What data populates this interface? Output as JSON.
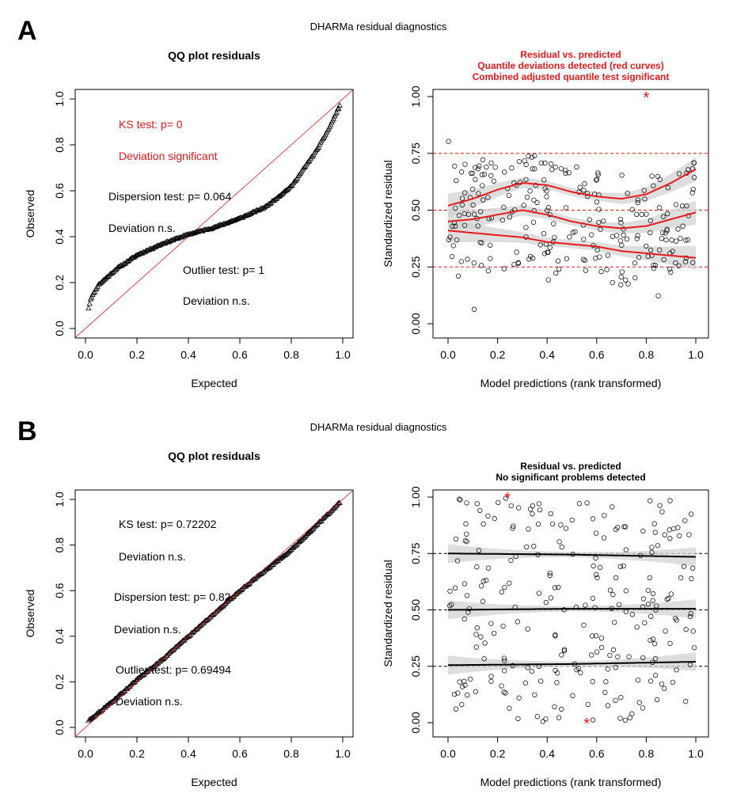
{
  "panels": [
    {
      "letter": "A",
      "suptitle": "DHARMa residual diagnostics",
      "qq": {
        "title": "QQ plot residuals",
        "xlabel": "Expected",
        "ylabel": "Observed",
        "ticks": [
          "0.0",
          "0.2",
          "0.4",
          "0.6",
          "0.8",
          "1.0"
        ],
        "annotations": [
          {
            "text": "KS test: p= 0",
            "color": "#e8191d"
          },
          {
            "text": "Deviation  significant",
            "color": "#e8191d"
          },
          {
            "text": "Dispersion test: p= 0.064",
            "color": "#000000"
          },
          {
            "text": "Deviation  n.s.",
            "color": "#000000"
          },
          {
            "text": "Outlier test: p= 1",
            "color": "#000000"
          },
          {
            "text": "Deviation  n.s.",
            "color": "#000000"
          }
        ]
      },
      "res": {
        "title_lines": [
          "Residual vs. predicted",
          "Quantile deviations detected (red curves)",
          "Combined adjusted quantile test significant"
        ],
        "title_color": "#e8191d",
        "xlabel": "Model predictions (rank transformed)",
        "ylabel": "Standardized residual",
        "xticks": [
          "0.0",
          "0.2",
          "0.4",
          "0.6",
          "0.8",
          "1.0"
        ],
        "yticks": [
          "0.00",
          "0.25",
          "0.50",
          "0.75",
          "1.00"
        ]
      }
    },
    {
      "letter": "B",
      "suptitle": "DHARMa residual diagnostics",
      "qq": {
        "title": "QQ plot residuals",
        "xlabel": "Expected",
        "ylabel": "Observed",
        "ticks": [
          "0.0",
          "0.2",
          "0.4",
          "0.6",
          "0.8",
          "1.0"
        ],
        "annotations": [
          {
            "text": "KS test: p= 0.72202",
            "color": "#000000"
          },
          {
            "text": "Deviation  n.s.",
            "color": "#000000"
          },
          {
            "text": "Dispersion test: p= 0.82",
            "color": "#000000"
          },
          {
            "text": "Deviation  n.s.",
            "color": "#000000"
          },
          {
            "text": "Outlier test: p= 0.69494",
            "color": "#000000"
          },
          {
            "text": "Deviation  n.s.",
            "color": "#000000"
          }
        ]
      },
      "res": {
        "title_lines": [
          "Residual vs. predicted",
          "No significant problems detected"
        ],
        "title_color": "#000000",
        "xlabel": "Model predictions (rank transformed)",
        "ylabel": "Standardized residual",
        "xticks": [
          "0.0",
          "0.2",
          "0.4",
          "0.6",
          "0.8",
          "1.0"
        ],
        "yticks": [
          "0.00",
          "0.25",
          "0.50",
          "0.75",
          "1.00"
        ]
      }
    }
  ],
  "chart_data": [
    {
      "type": "scatter",
      "title": "QQ plot residuals",
      "xlabel": "Expected",
      "ylabel": "Observed",
      "xlim": [
        0,
        1
      ],
      "ylim": [
        0,
        1
      ],
      "reference_line": "y = x",
      "series": [
        {
          "x": [
            0.0,
            0.02,
            0.05,
            0.08,
            0.12,
            0.2,
            0.3,
            0.4,
            0.5,
            0.6,
            0.7,
            0.8,
            0.85,
            0.9,
            0.95,
            1.0
          ],
          "values": [
            0.03,
            0.13,
            0.19,
            0.22,
            0.26,
            0.32,
            0.37,
            0.41,
            0.44,
            0.48,
            0.53,
            0.62,
            0.7,
            0.78,
            0.88,
            1.0
          ]
        }
      ]
    },
    {
      "type": "scatter",
      "title": "Residual vs. predicted",
      "xlabel": "Model predictions (rank transformed)",
      "ylabel": "Standardized residual",
      "xlim": [
        0,
        1
      ],
      "ylim": [
        0,
        1
      ],
      "reference_lines": [
        0.25,
        0.5,
        0.75
      ],
      "outliers": [
        {
          "x": 0.8,
          "y": 1.0
        }
      ],
      "quantile_curves": [
        {
          "quantile": 0.75,
          "x": [
            0,
            0.1,
            0.2,
            0.3,
            0.4,
            0.5,
            0.6,
            0.7,
            0.8,
            0.9,
            1.0
          ],
          "values": [
            0.52,
            0.55,
            0.59,
            0.62,
            0.61,
            0.58,
            0.56,
            0.55,
            0.57,
            0.62,
            0.68
          ]
        },
        {
          "quantile": 0.5,
          "x": [
            0,
            0.1,
            0.2,
            0.3,
            0.4,
            0.5,
            0.6,
            0.7,
            0.8,
            0.9,
            1.0
          ],
          "values": [
            0.45,
            0.46,
            0.48,
            0.5,
            0.48,
            0.45,
            0.43,
            0.42,
            0.43,
            0.46,
            0.49
          ]
        },
        {
          "quantile": 0.25,
          "x": [
            0,
            0.1,
            0.2,
            0.3,
            0.4,
            0.5,
            0.6,
            0.7,
            0.8,
            0.9,
            1.0
          ],
          "values": [
            0.41,
            0.4,
            0.39,
            0.38,
            0.36,
            0.35,
            0.34,
            0.32,
            0.31,
            0.3,
            0.29
          ]
        }
      ]
    },
    {
      "type": "scatter",
      "title": "QQ plot residuals",
      "xlabel": "Expected",
      "ylabel": "Observed",
      "xlim": [
        0,
        1
      ],
      "ylim": [
        0,
        1
      ],
      "reference_line": "y = x",
      "series": [
        {
          "x": [
            0.0,
            0.1,
            0.2,
            0.3,
            0.4,
            0.5,
            0.6,
            0.7,
            0.8,
            0.9,
            1.0
          ],
          "values": [
            0.02,
            0.11,
            0.21,
            0.3,
            0.4,
            0.5,
            0.6,
            0.69,
            0.78,
            0.89,
            1.0
          ]
        }
      ]
    },
    {
      "type": "scatter",
      "title": "Residual vs. predicted",
      "xlabel": "Model predictions (rank transformed)",
      "ylabel": "Standardized residual",
      "xlim": [
        0,
        1
      ],
      "ylim": [
        0,
        1
      ],
      "reference_lines": [
        0.25,
        0.5,
        0.75
      ],
      "outliers": [
        {
          "x": 0.24,
          "y": 1.0
        },
        {
          "x": 0.56,
          "y": 0.0
        }
      ],
      "quantile_curves": [
        {
          "quantile": 0.75,
          "x": [
            0,
            0.5,
            1.0
          ],
          "values": [
            0.75,
            0.745,
            0.735
          ]
        },
        {
          "quantile": 0.5,
          "x": [
            0,
            0.5,
            1.0
          ],
          "values": [
            0.5,
            0.505,
            0.505
          ]
        },
        {
          "quantile": 0.25,
          "x": [
            0,
            0.5,
            1.0
          ],
          "values": [
            0.255,
            0.26,
            0.27
          ]
        }
      ]
    }
  ]
}
